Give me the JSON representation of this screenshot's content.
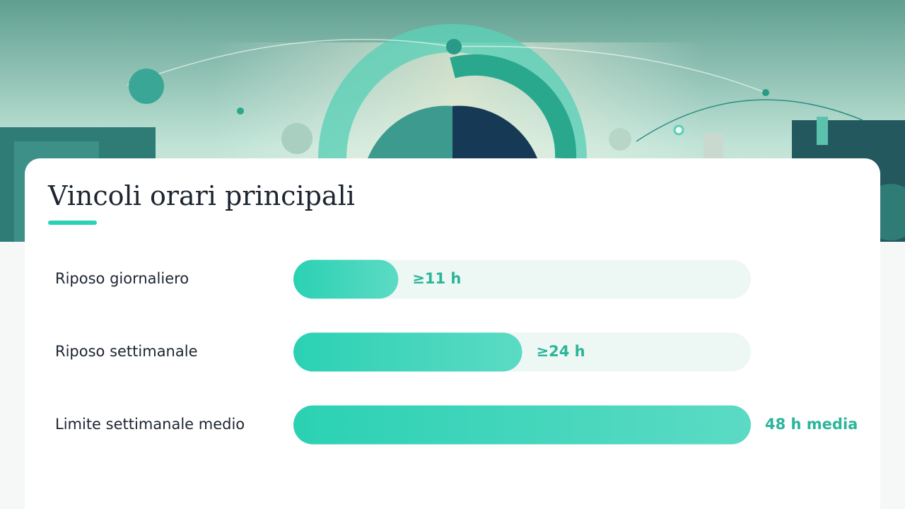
{
  "chart_data": {
    "type": "bar",
    "orientation": "horizontal",
    "title": "Vincoli orari principali",
    "categories": [
      "Riposo giornaliero",
      "Riposo settimanale",
      "Limite settimanale medio"
    ],
    "values": [
      11,
      24,
      48
    ],
    "value_labels": [
      "≥11 h",
      "≥24 h",
      "48 h media"
    ],
    "xlim": [
      0,
      48
    ],
    "color": "#2bd1b4"
  }
}
